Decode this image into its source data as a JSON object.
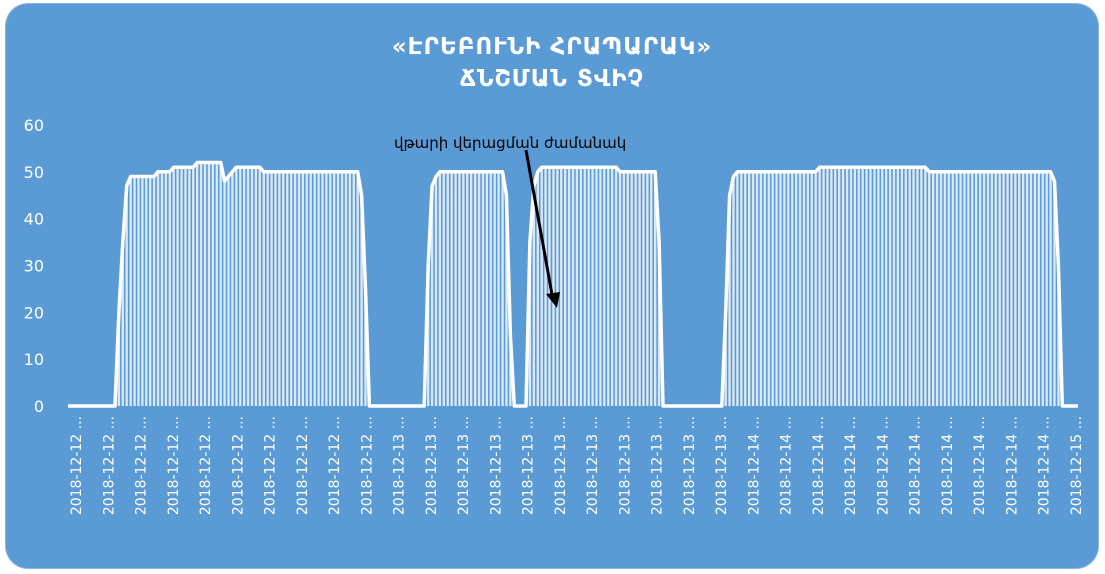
{
  "chart_data": {
    "type": "area",
    "title": "«ԷՐԵԲՈՒՆԻ ՀՐԱՊԱՐԱԿ»",
    "subtitle": "ՃՆՇՄԱՆ ՏՎԻՉ",
    "xlabel": "",
    "ylabel": "",
    "ylim": [
      0,
      60
    ],
    "yticks": [
      0,
      10,
      20,
      30,
      40,
      50,
      60
    ],
    "grid": false,
    "legend": "none",
    "annotation": "վթարի վերացման ժամանակ",
    "x_tick_labels": [
      "2018-12-12 ...",
      "2018-12-12 ...",
      "2018-12-12 ...",
      "2018-12-12 ...",
      "2018-12-12 ...",
      "2018-12-12 ...",
      "2018-12-12 ...",
      "2018-12-12 ...",
      "2018-12-12 ...",
      "2018-12-12 ...",
      "2018-12-13 ...",
      "2018-12-13 ...",
      "2018-12-13 ...",
      "2018-12-13 ...",
      "2018-12-13 ...",
      "2018-12-13 ...",
      "2018-12-13 ...",
      "2018-12-13 ...",
      "2018-12-13 ...",
      "2018-12-13 ...",
      "2018-12-13 ...",
      "2018-12-14 ...",
      "2018-12-14 ...",
      "2018-12-14 ...",
      "2018-12-14 ...",
      "2018-12-14 ...",
      "2018-12-14 ...",
      "2018-12-14 ...",
      "2018-12-14 ...",
      "2018-12-14 ...",
      "2018-12-14 ...",
      "2018-12-15 ..."
    ],
    "series": [
      {
        "values": [
          0,
          0,
          0,
          0,
          0,
          0,
          0,
          0,
          0,
          0,
          0,
          0,
          0,
          20,
          35,
          47,
          49,
          49,
          49,
          49,
          49,
          49,
          49,
          50,
          50,
          50,
          50,
          51,
          51,
          51,
          51,
          51,
          51,
          52,
          52,
          52,
          52,
          52,
          52,
          52,
          48,
          49,
          50,
          51,
          51,
          51,
          51,
          51,
          51,
          51,
          50,
          50,
          50,
          50,
          50,
          50,
          50,
          50,
          50,
          50,
          50,
          50,
          50,
          50,
          50,
          50,
          50,
          50,
          50,
          50,
          50,
          50,
          50,
          50,
          50,
          45,
          25,
          0,
          0,
          0,
          0,
          0,
          0,
          0,
          0,
          0,
          0,
          0,
          0,
          0,
          0,
          0,
          30,
          47,
          49,
          50,
          50,
          50,
          50,
          50,
          50,
          50,
          50,
          50,
          50,
          50,
          50,
          50,
          50,
          50,
          50,
          50,
          45,
          15,
          0,
          0,
          0,
          0,
          35,
          47,
          50,
          51,
          51,
          51,
          51,
          51,
          51,
          51,
          51,
          51,
          51,
          51,
          51,
          51,
          51,
          51,
          51,
          51,
          51,
          51,
          51,
          50,
          50,
          50,
          50,
          50,
          50,
          50,
          50,
          50,
          50,
          35,
          0,
          0,
          0,
          0,
          0,
          0,
          0,
          0,
          0,
          0,
          0,
          0,
          0,
          0,
          0,
          0,
          20,
          45,
          49,
          50,
          50,
          50,
          50,
          50,
          50,
          50,
          50,
          50,
          50,
          50,
          50,
          50,
          50,
          50,
          50,
          50,
          50,
          50,
          50,
          50,
          51,
          51,
          51,
          51,
          51,
          51,
          51,
          51,
          51,
          51,
          51,
          51,
          51,
          51,
          51,
          51,
          51,
          51,
          51,
          51,
          51,
          51,
          51,
          51,
          51,
          51,
          51,
          51,
          50,
          50,
          50,
          50,
          50,
          50,
          50,
          50,
          50,
          50,
          50,
          50,
          50,
          50,
          50,
          50,
          50,
          50,
          50,
          50,
          50,
          50,
          50,
          50,
          50,
          50,
          50,
          50,
          50,
          50,
          50,
          50,
          48,
          30,
          0,
          0,
          0,
          0,
          0
        ]
      }
    ],
    "colors": {
      "background": "#5b9bd5",
      "fill": "#ffffff",
      "line": "#ffffff",
      "arrow": "#000000"
    }
  }
}
